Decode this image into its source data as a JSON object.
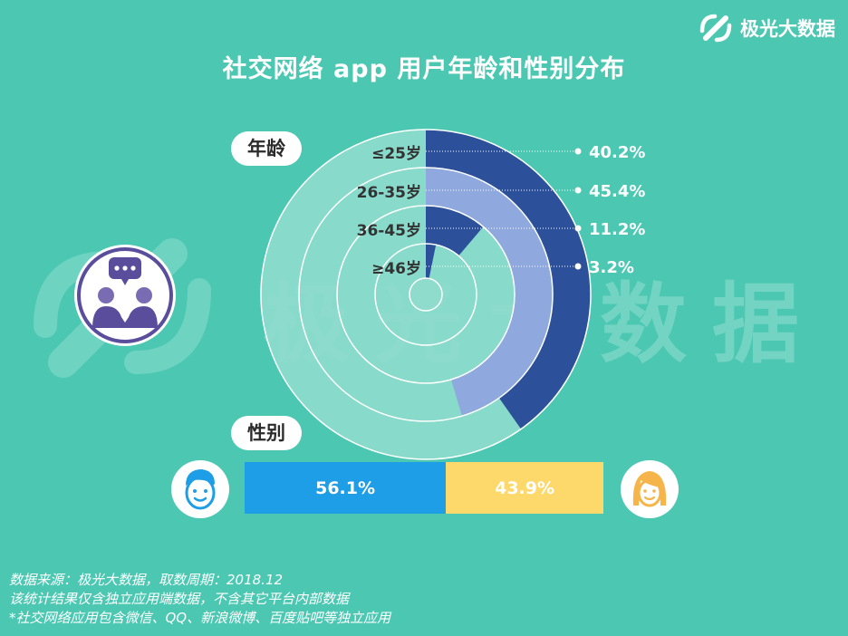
{
  "title": "社交网络 app 用户年龄和性别分布",
  "brand": {
    "name": "极光大数据",
    "watermark": "极光大数据"
  },
  "labels": {
    "age": "年龄",
    "gender": "性别"
  },
  "chart_data": [
    {
      "type": "pie",
      "subtype": "concentric-rings",
      "name": "年龄",
      "categories": [
        "≤25岁",
        "26-35岁",
        "36-45岁",
        "≥46岁"
      ],
      "values": [
        40.2,
        45.4,
        11.2,
        3.2
      ],
      "value_labels": [
        "40.2%",
        "45.4%",
        "11.2%",
        "3.2%"
      ],
      "colors": [
        "#2c519a",
        "#8fa9de",
        "#2c519a",
        "#2c519a"
      ],
      "track_colors": [
        "#8fdccd",
        "#8fdccd",
        "#8fdccd",
        "#8fdccd"
      ]
    },
    {
      "type": "bar",
      "subtype": "stacked-horizontal",
      "name": "性别",
      "categories": [
        "男",
        "女"
      ],
      "values": [
        56.1,
        43.9
      ],
      "value_labels": [
        "56.1%",
        "43.9%"
      ],
      "colors": [
        "#1e9ee6",
        "#fdd86a"
      ]
    }
  ],
  "icons": {
    "social": "people-chat-icon",
    "male": "male-avatar-icon",
    "female": "female-avatar-icon",
    "logo": "jiguang-logo-icon"
  },
  "notes": [
    "数据来源：极光大数据，取数周期：2018.12",
    "该统计结果仅含独立应用端数据，不含其它平台内部数据",
    "*社交网络应用包含微信、QQ、新浪微博、百度贴吧等独立应用"
  ]
}
